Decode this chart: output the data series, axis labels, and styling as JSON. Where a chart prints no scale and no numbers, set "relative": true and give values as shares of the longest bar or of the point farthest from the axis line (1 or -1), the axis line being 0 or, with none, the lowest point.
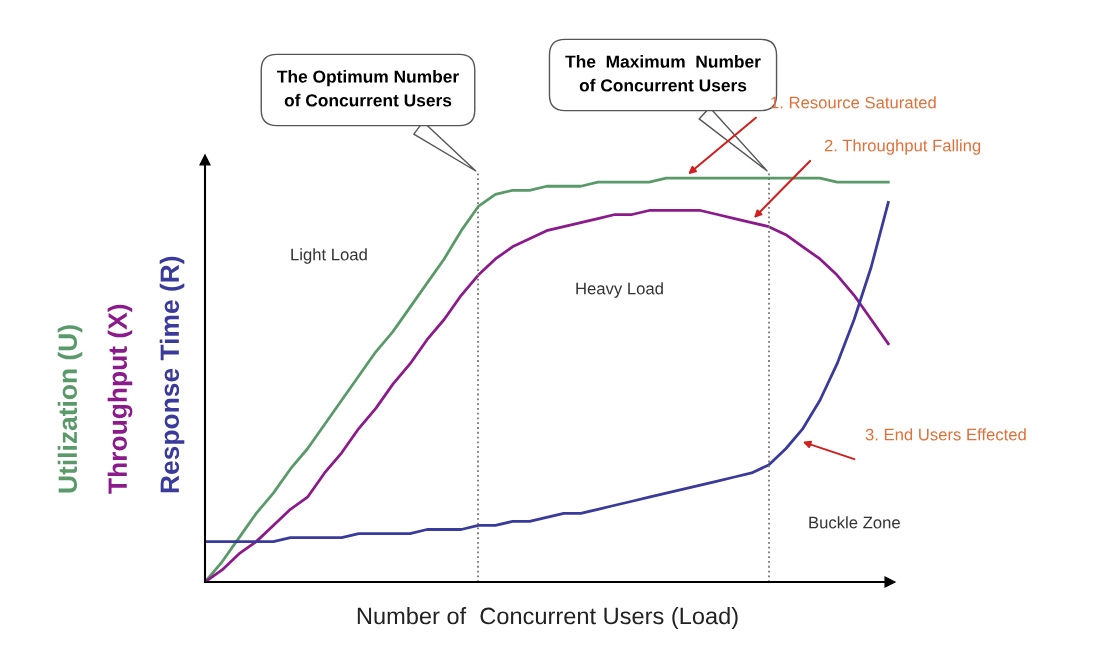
{
  "chart_data": {
    "type": "line",
    "relative": true,
    "xlabel": "Number of  Concurrent Users (Load)",
    "categories": [
      null,
      null,
      null,
      null,
      null,
      null,
      null,
      null,
      null,
      null,
      null,
      null,
      null,
      null,
      null,
      null,
      null,
      null,
      null,
      null,
      null,
      null,
      null,
      null,
      null,
      null,
      null,
      null,
      null,
      null,
      null,
      null,
      null,
      null,
      null,
      null,
      null,
      null,
      null,
      null,
      null
    ],
    "series": [
      {
        "name": "Utilization (U)",
        "color": "#5a9a6a",
        "values": [
          0,
          0.05,
          0.11,
          0.17,
          0.22,
          0.28,
          0.33,
          0.39,
          0.45,
          0.51,
          0.57,
          0.62,
          0.68,
          0.74,
          0.8,
          0.87,
          0.93,
          0.96,
          0.97,
          0.97,
          0.98,
          0.98,
          0.98,
          0.99,
          0.99,
          0.99,
          0.99,
          1,
          1,
          1,
          1,
          1,
          1,
          1,
          1,
          1,
          1,
          0.99,
          0.99,
          0.99,
          0.99
        ]
      },
      {
        "name": "Throughput (X)",
        "color": "#8b1a8b",
        "values": [
          0,
          0.03,
          0.07,
          0.1,
          0.14,
          0.18,
          0.21,
          0.27,
          0.32,
          0.38,
          0.43,
          0.49,
          0.54,
          0.6,
          0.65,
          0.71,
          0.76,
          0.8,
          0.83,
          0.85,
          0.87,
          0.88,
          0.89,
          0.9,
          0.91,
          0.91,
          0.92,
          0.92,
          0.92,
          0.92,
          0.91,
          0.9,
          0.89,
          0.88,
          0.86,
          0.83,
          0.8,
          0.76,
          0.71,
          0.65,
          0.59
        ]
      },
      {
        "name": "Response Time (R)",
        "color": "#3a3a9a",
        "values": [
          0.1,
          0.1,
          0.1,
          0.1,
          0.1,
          0.11,
          0.11,
          0.11,
          0.11,
          0.12,
          0.12,
          0.12,
          0.12,
          0.13,
          0.13,
          0.13,
          0.14,
          0.14,
          0.15,
          0.15,
          0.16,
          0.17,
          0.17,
          0.18,
          0.19,
          0.2,
          0.21,
          0.22,
          0.23,
          0.24,
          0.25,
          0.26,
          0.27,
          0.29,
          0.33,
          0.38,
          0.45,
          0.54,
          0.65,
          0.78,
          0.94
        ]
      }
    ],
    "annotations": [
      "The Optimum Number\nof Concurrent Users",
      "The  Maximum  Number\nof Concurrent Users",
      "Light Load",
      "Heavy Load",
      "Buckle Zone",
      "1. Resource Saturated",
      "2. Throughput Falling",
      "3. End Users Effected"
    ]
  }
}
